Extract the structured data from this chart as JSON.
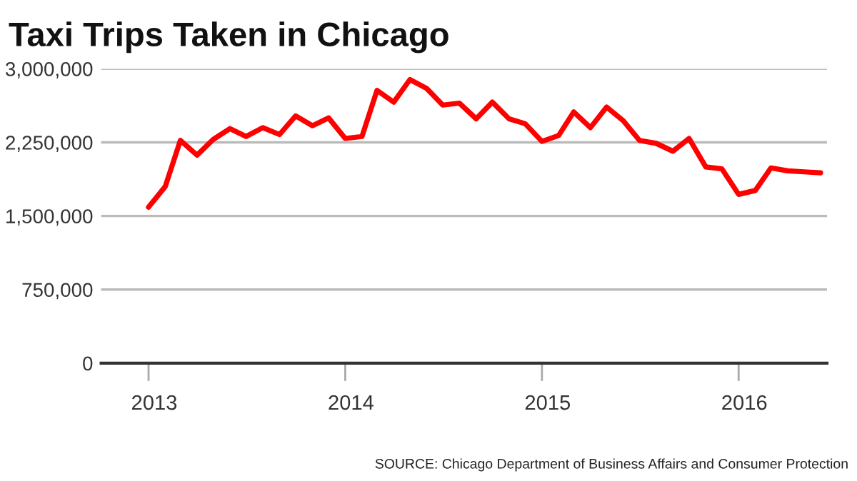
{
  "chart_data": {
    "type": "line",
    "title": "Taxi Trips Taken in Chicago",
    "x": [
      "2013-01",
      "2013-02",
      "2013-03",
      "2013-04",
      "2013-05",
      "2013-06",
      "2013-07",
      "2013-08",
      "2013-09",
      "2013-10",
      "2013-11",
      "2013-12",
      "2014-01",
      "2014-02",
      "2014-03",
      "2014-04",
      "2014-05",
      "2014-06",
      "2014-07",
      "2014-08",
      "2014-09",
      "2014-10",
      "2014-11",
      "2014-12",
      "2015-01",
      "2015-02",
      "2015-03",
      "2015-04",
      "2015-05",
      "2015-06",
      "2015-07",
      "2015-08",
      "2015-09",
      "2015-10",
      "2015-11",
      "2015-12",
      "2016-01",
      "2016-02",
      "2016-03",
      "2016-04",
      "2016-05",
      "2016-06"
    ],
    "series": [
      {
        "color": "#ff0000",
        "values": [
          1590000,
          1800000,
          2270000,
          2120000,
          2280000,
          2390000,
          2310000,
          2400000,
          2330000,
          2520000,
          2420000,
          2500000,
          2290000,
          2310000,
          2780000,
          2660000,
          2890000,
          2800000,
          2630000,
          2650000,
          2490000,
          2660000,
          2490000,
          2440000,
          2260000,
          2320000,
          2560000,
          2400000,
          2610000,
          2470000,
          2270000,
          2240000,
          2160000,
          2290000,
          2000000,
          1980000,
          1720000,
          1760000,
          1990000,
          1960000,
          1950000,
          1940000
        ]
      }
    ],
    "xlim": [
      "2012-10-05",
      "2016-06-13"
    ],
    "xticks": [
      {
        "value": "2013-01",
        "label": "2013"
      },
      {
        "value": "2014-01",
        "label": "2014"
      },
      {
        "value": "2015-01",
        "label": "2015"
      },
      {
        "value": "2016-01",
        "label": "2016"
      }
    ],
    "ylim": [
      0,
      3000000
    ],
    "yticks": [
      {
        "value": 0,
        "label": "0"
      },
      {
        "value": 750000,
        "label": "750,000"
      },
      {
        "value": 1500000,
        "label": "1,500,000"
      },
      {
        "value": 2250000,
        "label": "2,250,000"
      },
      {
        "value": 3000000,
        "label": "3,000,000"
      }
    ],
    "grid": "y",
    "annotations": [
      "SOURCE: Chicago Department of Business Affairs and Consumer Protection"
    ]
  }
}
